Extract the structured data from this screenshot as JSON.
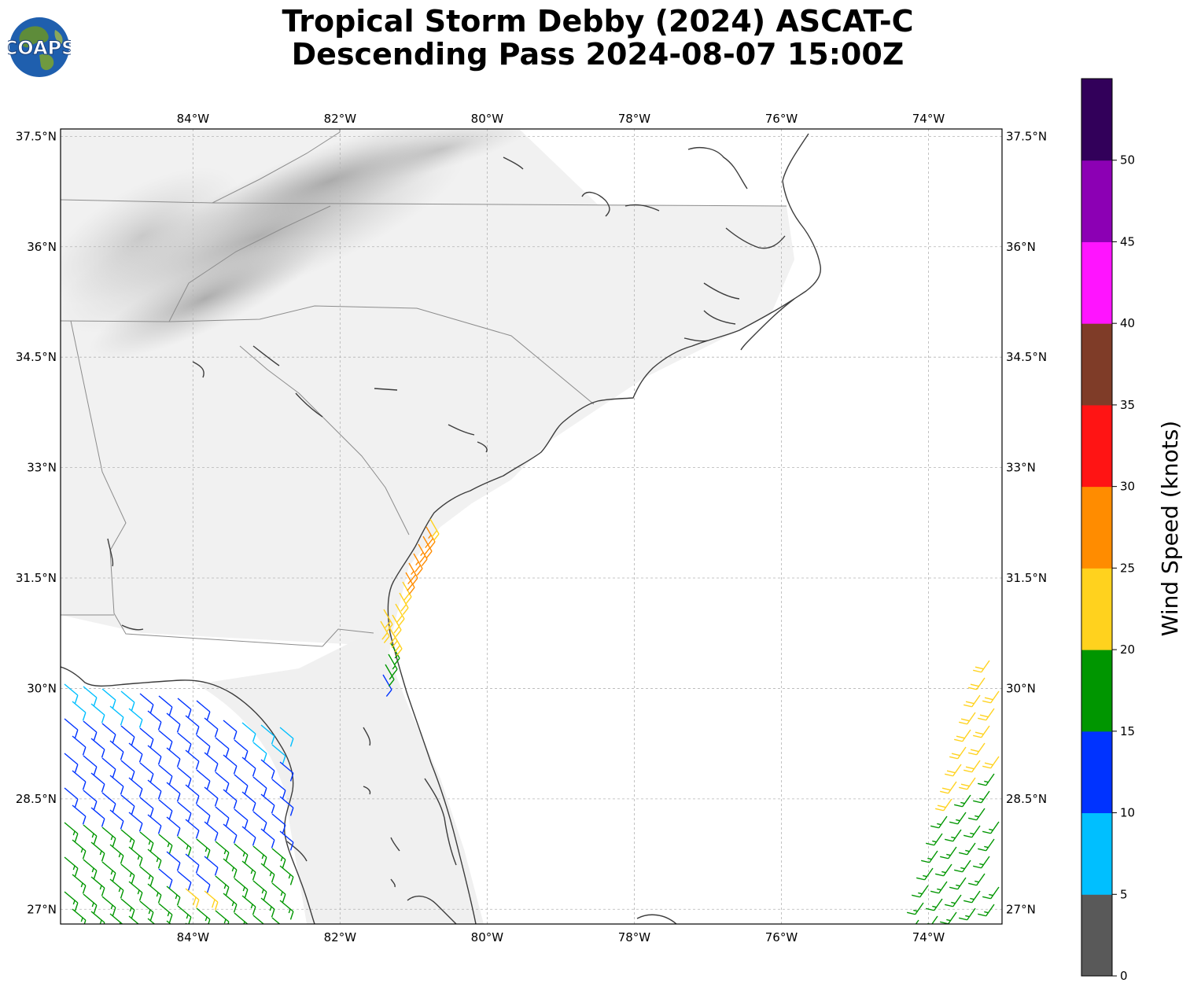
{
  "title": {
    "line1": "Tropical Storm Debby (2024) ASCAT-C",
    "line2": "Descending Pass 2024-08-07 15:00Z"
  },
  "logo": {
    "text": "COAPS"
  },
  "map": {
    "lon_ticks": [
      "84°W",
      "82°W",
      "80°W",
      "78°W",
      "76°W",
      "74°W"
    ],
    "lat_ticks": [
      "37.5°N",
      "36°N",
      "34.5°N",
      "33°N",
      "31.5°N",
      "30°N",
      "28.5°N",
      "27°N"
    ],
    "extent": {
      "lon": [
        -85.8,
        -73.0
      ],
      "lat": [
        26.8,
        37.6
      ]
    },
    "gridlines": true
  },
  "colorbar": {
    "label": "Wind Speed (knots)",
    "ticks": [
      "0",
      "5",
      "10",
      "15",
      "20",
      "25",
      "30",
      "35",
      "40",
      "45",
      "50"
    ],
    "bins": [
      {
        "min": 0,
        "max": 5,
        "color": "#595959"
      },
      {
        "min": 5,
        "max": 10,
        "color": "#00bfff"
      },
      {
        "min": 10,
        "max": 15,
        "color": "#0033ff"
      },
      {
        "min": 15,
        "max": 20,
        "color": "#009600"
      },
      {
        "min": 20,
        "max": 25,
        "color": "#ffd21e"
      },
      {
        "min": 25,
        "max": 30,
        "color": "#ff8c00"
      },
      {
        "min": 30,
        "max": 35,
        "color": "#ff1414"
      },
      {
        "min": 35,
        "max": 40,
        "color": "#7f3c28"
      },
      {
        "min": 40,
        "max": 45,
        "color": "#ff14ff"
      },
      {
        "min": 45,
        "max": 50,
        "color": "#8c00b4"
      },
      {
        "min": 50,
        "max": 55,
        "color": "#32005a"
      }
    ]
  }
}
